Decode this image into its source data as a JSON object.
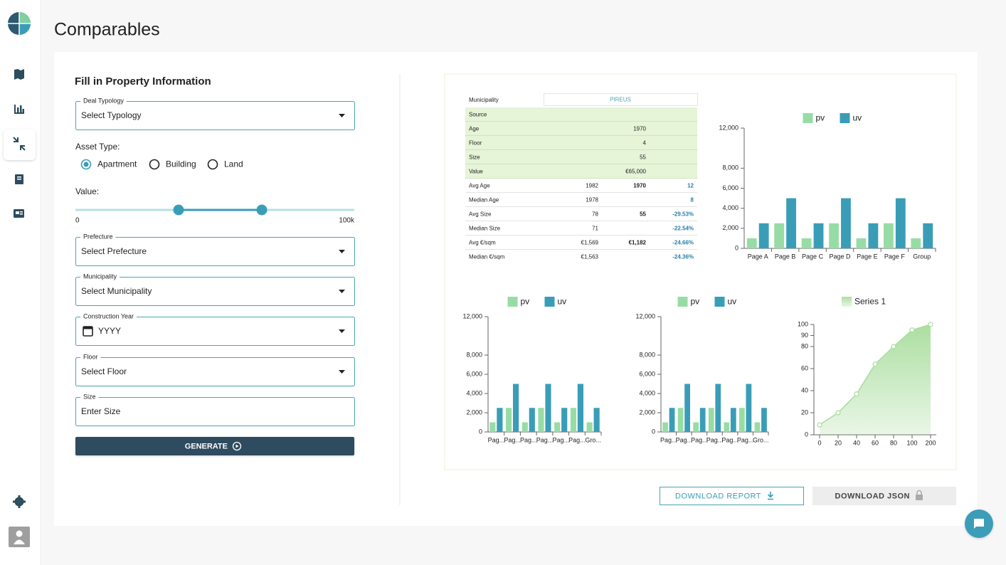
{
  "app": {
    "title": "Comparables"
  },
  "form": {
    "title": "Fill in Property Information",
    "deal_typology": {
      "label": "Deal Typology",
      "placeholder": "Select Typology"
    },
    "asset_type": {
      "label": "Asset Type:",
      "options": [
        "Apartment",
        "Building",
        "Land"
      ]
    },
    "value": {
      "label": "Value:",
      "min_label": "0",
      "max_label": "100k"
    },
    "fields": [
      {
        "label": "Prefecture",
        "placeholder": "Select Prefecture"
      },
      {
        "label": "Municipality",
        "placeholder": "Select Municipality"
      },
      {
        "label": "Construction Year",
        "placeholder": "YYYY"
      },
      {
        "label": "Floor",
        "placeholder": "Select Floor"
      },
      {
        "label": "Size",
        "placeholder": "Enter Size"
      }
    ],
    "generate": "GENERATE"
  },
  "table": {
    "header": [
      "Municipality",
      "PIREUS"
    ],
    "property_rows": [
      [
        "Source"
      ],
      [
        "Age",
        "1970"
      ],
      [
        "Floor",
        "4"
      ],
      [
        "Size",
        "55"
      ],
      [
        "Value",
        "€65,000"
      ]
    ],
    "stats_rows": [
      [
        "Avg Age",
        "1982",
        "1970",
        "12"
      ],
      [
        "Median Age",
        "1978",
        null,
        "8"
      ],
      [
        "Avg Size",
        "78",
        "55",
        "-29.53%"
      ],
      [
        "Median Size",
        "71",
        null,
        "-22.54%"
      ],
      [
        "Avg €/sqm",
        "€1,569",
        "€1,182",
        "-24.66%"
      ],
      [
        "Median €/sqm",
        "€1,563",
        null,
        "-24.36%"
      ]
    ]
  },
  "chart_data": [
    {
      "type": "bar",
      "categories": [
        "Page A",
        "Page B",
        "Page C",
        "Page D",
        "Page E",
        "Page F",
        "Group"
      ],
      "series": [
        {
          "name": "pv",
          "color": "#98dca5",
          "values": [
            1000,
            2500,
            1000,
            2500,
            1000,
            2500,
            1000
          ]
        },
        {
          "name": "uv",
          "color": "#3a9db8",
          "values": [
            2500,
            5000,
            2500,
            5000,
            2500,
            5000,
            2500
          ]
        }
      ],
      "ylim": [
        0,
        12000
      ],
      "yticks": [
        0,
        {
          "value": 2000,
          "label": "2,000"
        },
        {
          "value": 4000,
          "label": "4,000"
        },
        {
          "value": 6000,
          "label": "6,000"
        },
        {
          "value": 8000,
          "label": "8,000"
        },
        {
          "value": 12000,
          "label": "12,000"
        }
      ],
      "legend": "top"
    },
    {
      "type": "bar",
      "categories": [
        "Pag...",
        "Pag...",
        "Pag...",
        "Pag...",
        "Pag...",
        "Pag...",
        "Gro..."
      ],
      "series": [
        {
          "name": "pv",
          "color": "#98dca5",
          "values": [
            1000,
            2500,
            1000,
            2500,
            1000,
            2500,
            1000
          ]
        },
        {
          "name": "uv",
          "color": "#3a9db8",
          "values": [
            2500,
            5000,
            2500,
            5000,
            2500,
            5000,
            2500
          ]
        }
      ],
      "ylim": [
        0,
        12000
      ],
      "yticks": [
        0,
        {
          "value": 2000,
          "label": "2,000"
        },
        {
          "value": 4000,
          "label": "4,000"
        },
        {
          "value": 6000,
          "label": "6,000"
        },
        {
          "value": 8000,
          "label": "8,000"
        },
        {
          "value": 12000,
          "label": "12,000"
        }
      ],
      "legend": "top"
    },
    {
      "type": "bar",
      "categories": [
        "Pag...",
        "Pag...",
        "Pag...",
        "Pag...",
        "Pag...",
        "Pag...",
        "Gro..."
      ],
      "series": [
        {
          "name": "pv",
          "color": "#98dca5",
          "values": [
            1000,
            2500,
            1000,
            2500,
            1000,
            2500,
            1000
          ]
        },
        {
          "name": "uv",
          "color": "#3a9db8",
          "values": [
            2500,
            5000,
            2500,
            5000,
            2500,
            5000,
            2500
          ]
        }
      ],
      "ylim": [
        0,
        12000
      ],
      "yticks": [
        0,
        {
          "value": 2000,
          "label": "2,000"
        },
        {
          "value": 4000,
          "label": "4,000"
        },
        {
          "value": 6000,
          "label": "6,000"
        },
        {
          "value": 8000,
          "label": "8,000"
        },
        {
          "value": 12000,
          "label": "12,000"
        }
      ],
      "legend": "top"
    },
    {
      "type": "area",
      "categories": [
        "0",
        "20",
        "40",
        "60",
        "80",
        "100",
        "200"
      ],
      "series": [
        {
          "name": "Series 1",
          "color": "#a8dd9c",
          "values": [
            9,
            20,
            37,
            64,
            80,
            95,
            100
          ]
        }
      ],
      "ylim": [
        0,
        100
      ],
      "yticks": [
        0,
        20,
        40,
        60,
        80,
        90,
        100
      ],
      "legend": "top"
    }
  ],
  "actions": {
    "download_report": "DOWNLOAD REPORT",
    "download_json": "DOWNLOAD JSON"
  }
}
